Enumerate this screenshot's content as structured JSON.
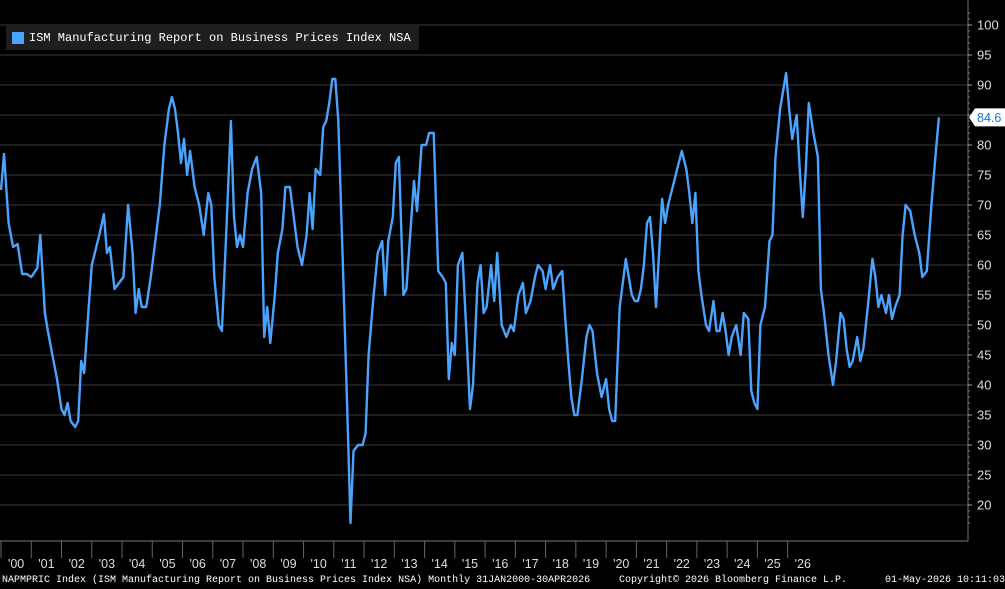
{
  "chart_data": {
    "type": "line",
    "title": "ISM Manufacturing Report on Business Prices Index NSA",
    "series": [
      {
        "name": "ISM Manufacturing Report on Business Prices Index NSA",
        "color": "#4aa3ff",
        "points": [
          [
            2000.0,
            72.5
          ],
          [
            2000.1,
            78.5
          ],
          [
            2000.25,
            67
          ],
          [
            2000.4,
            63
          ],
          [
            2000.55,
            63.5
          ],
          [
            2000.7,
            58.5
          ],
          [
            2000.85,
            58.5
          ],
          [
            2001.0,
            58
          ],
          [
            2001.2,
            59.5
          ],
          [
            2001.3,
            65
          ],
          [
            2001.45,
            52
          ],
          [
            2001.55,
            49
          ],
          [
            2001.7,
            45
          ],
          [
            2001.85,
            41
          ],
          [
            2002.0,
            36
          ],
          [
            2002.1,
            35
          ],
          [
            2002.2,
            37
          ],
          [
            2002.3,
            34
          ],
          [
            2002.45,
            33
          ],
          [
            2002.55,
            34
          ],
          [
            2002.65,
            44
          ],
          [
            2002.75,
            42
          ],
          [
            2002.9,
            53
          ],
          [
            2003.0,
            60
          ],
          [
            2003.25,
            65
          ],
          [
            2003.4,
            68.5
          ],
          [
            2003.5,
            62
          ],
          [
            2003.6,
            63
          ],
          [
            2003.75,
            56
          ],
          [
            2003.9,
            57
          ],
          [
            2004.05,
            58
          ],
          [
            2004.2,
            70
          ],
          [
            2004.35,
            62
          ],
          [
            2004.45,
            52
          ],
          [
            2004.55,
            56
          ],
          [
            2004.65,
            53
          ],
          [
            2004.8,
            53
          ],
          [
            2004.95,
            58
          ],
          [
            2005.1,
            64
          ],
          [
            2005.25,
            70
          ],
          [
            2005.4,
            80
          ],
          [
            2005.55,
            86
          ],
          [
            2005.65,
            88
          ],
          [
            2005.75,
            86
          ],
          [
            2005.85,
            82
          ],
          [
            2005.95,
            77
          ],
          [
            2006.05,
            81
          ],
          [
            2006.15,
            75
          ],
          [
            2006.25,
            79
          ],
          [
            2006.4,
            73
          ],
          [
            2006.55,
            70
          ],
          [
            2006.7,
            65
          ],
          [
            2006.85,
            72
          ],
          [
            2006.95,
            70
          ],
          [
            2007.05,
            58
          ],
          [
            2007.2,
            50
          ],
          [
            2007.3,
            49
          ],
          [
            2007.45,
            66
          ],
          [
            2007.6,
            84
          ],
          [
            2007.7,
            68
          ],
          [
            2007.8,
            63
          ],
          [
            2007.9,
            65
          ],
          [
            2008.0,
            63
          ],
          [
            2008.15,
            72
          ],
          [
            2008.3,
            76
          ],
          [
            2008.45,
            78
          ],
          [
            2008.6,
            72
          ],
          [
            2008.7,
            48
          ],
          [
            2008.8,
            53
          ],
          [
            2008.9,
            47
          ],
          [
            2009.05,
            55
          ],
          [
            2009.15,
            62
          ],
          [
            2009.3,
            66
          ],
          [
            2009.4,
            73
          ],
          [
            2009.55,
            73
          ],
          [
            2009.65,
            69
          ],
          [
            2009.8,
            63
          ],
          [
            2009.95,
            60
          ],
          [
            2010.1,
            65
          ],
          [
            2010.2,
            72
          ],
          [
            2010.3,
            66
          ],
          [
            2010.4,
            76
          ],
          [
            2010.55,
            75
          ],
          [
            2010.65,
            83
          ],
          [
            2010.75,
            84
          ],
          [
            2010.85,
            87
          ],
          [
            2010.95,
            91
          ],
          [
            2011.05,
            91
          ],
          [
            2011.15,
            84
          ],
          [
            2011.3,
            60
          ],
          [
            2011.45,
            35
          ],
          [
            2011.55,
            17
          ],
          [
            2011.65,
            29
          ],
          [
            2011.8,
            30
          ],
          [
            2011.95,
            30
          ],
          [
            2012.05,
            32
          ],
          [
            2012.15,
            45
          ],
          [
            2012.3,
            54
          ],
          [
            2012.45,
            62
          ],
          [
            2012.6,
            64
          ],
          [
            2012.7,
            55
          ],
          [
            2012.8,
            64
          ],
          [
            2012.95,
            68
          ],
          [
            2013.05,
            77
          ],
          [
            2013.15,
            78
          ],
          [
            2013.3,
            55
          ],
          [
            2013.4,
            56
          ],
          [
            2013.55,
            67
          ],
          [
            2013.65,
            74
          ],
          [
            2013.75,
            69
          ],
          [
            2013.9,
            80
          ],
          [
            2014.05,
            80
          ],
          [
            2014.15,
            82
          ],
          [
            2014.3,
            82
          ],
          [
            2014.45,
            59
          ],
          [
            2014.6,
            58
          ],
          [
            2014.7,
            57
          ],
          [
            2014.8,
            41
          ],
          [
            2014.9,
            47
          ],
          [
            2015.0,
            45
          ],
          [
            2015.1,
            60
          ],
          [
            2015.25,
            62
          ],
          [
            2015.4,
            47
          ],
          [
            2015.5,
            36
          ],
          [
            2015.6,
            40
          ],
          [
            2015.75,
            57
          ],
          [
            2015.85,
            60
          ],
          [
            2015.95,
            52
          ],
          [
            2016.05,
            53
          ],
          [
            2016.2,
            60
          ],
          [
            2016.3,
            54
          ],
          [
            2016.4,
            62
          ],
          [
            2016.55,
            50
          ],
          [
            2016.7,
            48
          ],
          [
            2016.85,
            50
          ],
          [
            2016.95,
            49
          ],
          [
            2017.1,
            55
          ],
          [
            2017.25,
            57
          ],
          [
            2017.35,
            52
          ],
          [
            2017.5,
            54
          ],
          [
            2017.65,
            58
          ],
          [
            2017.75,
            60
          ],
          [
            2017.9,
            59
          ],
          [
            2018.0,
            56
          ],
          [
            2018.15,
            60
          ],
          [
            2018.25,
            56
          ],
          [
            2018.4,
            58
          ],
          [
            2018.55,
            59
          ],
          [
            2018.65,
            51
          ],
          [
            2018.75,
            44
          ],
          [
            2018.85,
            38
          ],
          [
            2018.95,
            35
          ],
          [
            2019.05,
            35
          ],
          [
            2019.2,
            41
          ],
          [
            2019.35,
            48
          ],
          [
            2019.45,
            50
          ],
          [
            2019.55,
            49
          ],
          [
            2019.7,
            42
          ],
          [
            2019.85,
            38
          ],
          [
            2020.0,
            41
          ],
          [
            2020.1,
            36
          ],
          [
            2020.2,
            34
          ],
          [
            2020.3,
            34
          ],
          [
            2020.45,
            53
          ],
          [
            2020.55,
            57
          ],
          [
            2020.65,
            61
          ],
          [
            2020.75,
            58
          ],
          [
            2020.85,
            55
          ],
          [
            2020.95,
            54
          ],
          [
            2021.05,
            54
          ],
          [
            2021.15,
            56
          ],
          [
            2021.25,
            60
          ],
          [
            2021.35,
            67
          ],
          [
            2021.45,
            68
          ],
          [
            2021.55,
            62
          ],
          [
            2021.65,
            53
          ],
          [
            2021.75,
            62
          ],
          [
            2021.85,
            71
          ],
          [
            2021.95,
            67
          ],
          [
            2022.05,
            70
          ],
          [
            2022.2,
            73
          ],
          [
            2022.35,
            76
          ],
          [
            2022.5,
            79
          ],
          [
            2022.65,
            76
          ],
          [
            2022.75,
            72
          ],
          [
            2022.85,
            67
          ],
          [
            2022.95,
            72
          ],
          [
            2023.05,
            59
          ],
          [
            2023.15,
            55
          ],
          [
            2023.3,
            50
          ],
          [
            2023.4,
            49
          ],
          [
            2023.55,
            54
          ],
          [
            2023.65,
            49
          ],
          [
            2023.75,
            49
          ],
          [
            2023.85,
            52
          ],
          [
            2023.95,
            49
          ],
          [
            2024.05,
            45
          ],
          [
            2024.15,
            48
          ],
          [
            2024.3,
            50
          ],
          [
            2024.45,
            45
          ],
          [
            2024.55,
            52
          ],
          [
            2024.7,
            51
          ],
          [
            2024.8,
            39
          ],
          [
            2024.9,
            37
          ],
          [
            2025.0,
            36
          ],
          [
            2025.1,
            50
          ],
          [
            2025.25,
            53
          ],
          [
            2025.4,
            64
          ],
          [
            2025.5,
            65
          ],
          [
            2025.6,
            78
          ],
          [
            2025.75,
            86
          ],
          [
            2025.85,
            89
          ],
          [
            2025.95,
            92
          ],
          [
            2026.05,
            86
          ],
          [
            2026.15,
            81
          ],
          [
            2026.3,
            85
          ],
          [
            2026.4,
            76
          ],
          [
            2026.5,
            68
          ],
          [
            2026.6,
            76
          ],
          [
            2026.7,
            87
          ],
          [
            2026.85,
            82
          ],
          [
            2027.0,
            78
          ],
          [
            2027.1,
            56
          ],
          [
            2027.2,
            52
          ],
          [
            2027.35,
            45
          ],
          [
            2027.5,
            40
          ],
          [
            2027.6,
            44
          ],
          [
            2027.75,
            52
          ],
          [
            2027.85,
            51
          ],
          [
            2027.95,
            46
          ],
          [
            2028.05,
            43
          ],
          [
            2028.15,
            44
          ],
          [
            2028.3,
            48
          ],
          [
            2028.4,
            44
          ],
          [
            2028.5,
            46
          ],
          [
            2028.65,
            53
          ],
          [
            2028.8,
            61
          ],
          [
            2028.9,
            58
          ],
          [
            2029.0,
            53
          ],
          [
            2029.1,
            55
          ],
          [
            2029.25,
            52
          ],
          [
            2029.35,
            55
          ],
          [
            2029.45,
            51
          ],
          [
            2029.55,
            53
          ],
          [
            2029.7,
            55
          ],
          [
            2029.8,
            65
          ],
          [
            2029.9,
            70
          ],
          [
            2030.05,
            69
          ],
          [
            2030.2,
            65
          ],
          [
            2030.35,
            62
          ],
          [
            2030.45,
            58
          ],
          [
            2030.6,
            59
          ],
          [
            2030.75,
            70
          ],
          [
            2030.9,
            79
          ],
          [
            2031.0,
            84.6
          ]
        ]
      }
    ],
    "x_labels": [
      "'00",
      "'01",
      "'02",
      "'03",
      "'04",
      "'05",
      "'06",
      "'07",
      "'08",
      "'09",
      "'10",
      "'11",
      "'12",
      "'13",
      "'14",
      "'15",
      "'16",
      "'17",
      "'18",
      "'19",
      "'20",
      "'21",
      "'22",
      "'23",
      "'24",
      "'25",
      "'26"
    ],
    "yticks": [
      20,
      25,
      30,
      35,
      40,
      45,
      50,
      55,
      60,
      65,
      70,
      75,
      80,
      85,
      90,
      95,
      100
    ],
    "ylim": [
      15,
      102
    ],
    "last_value": "84.6",
    "grid": true
  },
  "footer": {
    "left": "NAPMPRIC Index (ISM Manufacturing Report on Business Prices Index NSA) Monthly 31JAN2000-30APR2026",
    "center": "Copyright© 2026 Bloomberg Finance L.P.",
    "right": "01-May-2026 10:11:03"
  }
}
